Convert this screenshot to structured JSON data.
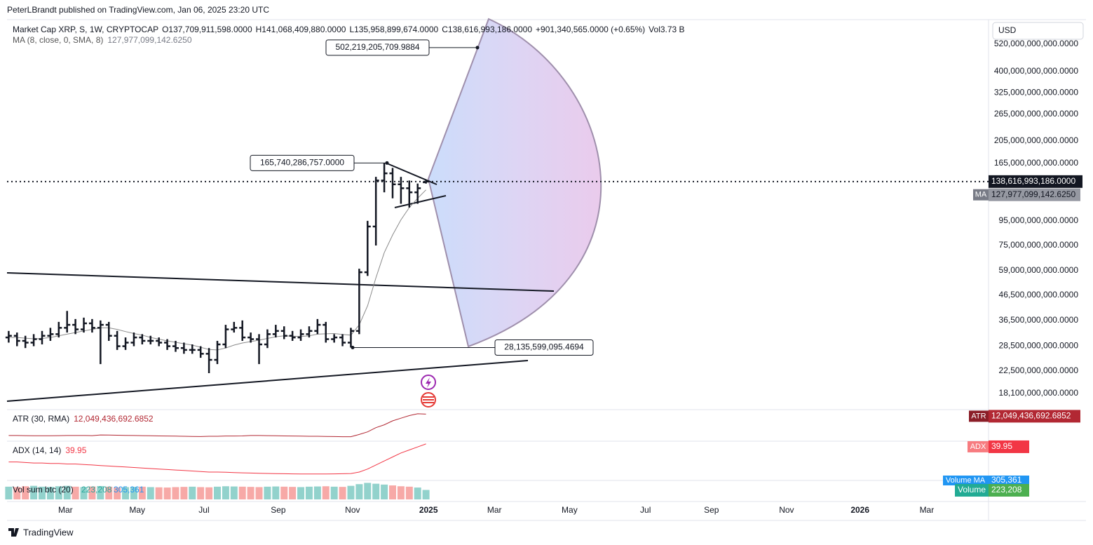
{
  "publisher": "PeterLBrandt published on TradingView.com, Jan 06, 2025 23:20 UTC",
  "currency": "USD",
  "footer": "TradingView",
  "chart_data": [
    {
      "type": "ohlc",
      "title": "Market Cap XRP, S, 1W, CRYPTOCAP",
      "legend": [
        "O137,709,911,598.0000",
        "H141,068,409,880.0000",
        "L135,958,899,674.0000",
        "C138,616,993,186.0000",
        "+901,340,565.0000 (+0.65%)",
        "Vol",
        "3.73 B"
      ],
      "color": "#131722",
      "log_scale": true,
      "x": [
        0,
        1,
        2,
        3,
        4,
        5,
        6,
        7,
        8,
        9,
        10,
        11,
        12,
        13,
        14,
        15,
        16,
        17,
        18,
        19,
        20,
        21,
        22,
        23,
        24,
        25,
        26,
        27,
        28,
        29,
        30,
        31,
        32,
        33,
        34,
        35,
        36,
        37,
        38,
        39,
        40,
        41,
        42,
        43,
        44,
        45,
        46,
        47,
        48,
        49,
        50
      ],
      "open": [
        31000000000.0,
        31500000000.0,
        30000000000.0,
        29500000000.0,
        30500000000.0,
        31500000000.0,
        32000000000.0,
        34000000000.0,
        35000000000.0,
        33500000000.0,
        35500000000.0,
        34000000000.0,
        35000000000.0,
        31500000000.0,
        28500000000.0,
        29500000000.0,
        31000000000.0,
        30000000000.0,
        30000000000.0,
        29500000000.0,
        28500000000.0,
        28000000000.0,
        27500000000.0,
        27500000000.0,
        26500000000.0,
        25000000000.0,
        29000000000.0,
        33500000000.0,
        34000000000.0,
        31000000000.0,
        30500000000.0,
        29000000000.0,
        32000000000.0,
        33000000000.0,
        31500000000.0,
        31000000000.0,
        32000000000.0,
        33000000000.0,
        35000000000.0,
        30500000000.0,
        31000000000.0,
        29500000000.0,
        33000000000.0,
        58000000000.0,
        90000000000.0,
        140000000000.0,
        150000000000.0,
        135000000000.0,
        130000000000.0,
        125000000000.0,
        137709911598
      ],
      "high": [
        33000000000.0,
        32500000000.0,
        31500000000.0,
        32000000000.0,
        33000000000.0,
        34000000000.0,
        36000000000.0,
        40000000000.0,
        37000000000.0,
        37500000000.0,
        37000000000.0,
        36500000000.0,
        36000000000.0,
        33000000000.0,
        31000000000.0,
        32500000000.0,
        32000000000.0,
        31500000000.0,
        31000000000.0,
        30500000000.0,
        30000000000.0,
        29500000000.0,
        29000000000.0,
        28500000000.0,
        28000000000.0,
        30000000000.0,
        35000000000.0,
        36000000000.0,
        36500000000.0,
        32500000000.0,
        32000000000.0,
        33500000000.0,
        35000000000.0,
        34500000000.0,
        33000000000.0,
        33500000000.0,
        34500000000.0,
        37000000000.0,
        36000000000.0,
        32000000000.0,
        32000000000.0,
        34000000000.0,
        60000000000.0,
        95000000000.0,
        145000000000.0,
        165740286757,
        158000000000.0,
        145000000000.0,
        140000000000.0,
        136000000000.0,
        141068409880
      ],
      "low": [
        29500000000.0,
        28500000000.0,
        28000000000.0,
        28500000000.0,
        29000000000.0,
        30000000000.0,
        31000000000.0,
        32500000000.0,
        32000000000.0,
        32500000000.0,
        32500000000.0,
        24000000000.0,
        30000000000.0,
        27500000000.0,
        27500000000.0,
        28500000000.0,
        29000000000.0,
        29000000000.0,
        28500000000.0,
        27500000000.0,
        27000000000.0,
        26500000000.0,
        26500000000.0,
        25500000000.0,
        22000000000.0,
        24000000000.0,
        28000000000.0,
        32500000000.0,
        30000000000.0,
        29500000000.0,
        24000000000.0,
        28000000000.0,
        31000000000.0,
        30500000000.0,
        30000000000.0,
        30000000000.0,
        31000000000.0,
        32000000000.0,
        29500000000.0,
        29500000000.0,
        28500000000.0,
        28135599095.4694,
        32000000000.0,
        56000000000.0,
        75000000000.0,
        125000000000.0,
        118000000000.0,
        112000000000.0,
        108000000000.0,
        112000000000.0,
        135958899674
      ],
      "close": [
        31500000000.0,
        30000000000.0,
        29500000000.0,
        30500000000.0,
        31500000000.0,
        32000000000.0,
        34000000000.0,
        35000000000.0,
        33500000000.0,
        35500000000.0,
        34000000000.0,
        35000000000.0,
        31500000000.0,
        28500000000.0,
        29500000000.0,
        31000000000.0,
        30000000000.0,
        30000000000.0,
        29500000000.0,
        28500000000.0,
        28000000000.0,
        27500000000.0,
        27500000000.0,
        26500000000.0,
        25000000000.0,
        29000000000.0,
        33500000000.0,
        34000000000.0,
        31000000000.0,
        30500000000.0,
        29000000000.0,
        32000000000.0,
        33000000000.0,
        31500000000.0,
        31000000000.0,
        32000000000.0,
        33000000000.0,
        35000000000.0,
        30500000000.0,
        31000000000.0,
        29500000000.0,
        33000000000.0,
        58000000000.0,
        90000000000.0,
        140000000000.0,
        150000000000.0,
        135000000000.0,
        130000000000.0,
        125000000000.0,
        130000000000.0,
        138616993186
      ],
      "close_label": "138,616,993,186.0000",
      "ma": {
        "name": "MA (8, close, 0, SMA, 8)",
        "short_name": "MA",
        "color": "#8a8a8a",
        "value_label": "127,977,099,142.6250",
        "values": [
          31000000000.0,
          31000000000.0,
          30800000000.0,
          30600000000.0,
          30700000000.0,
          31000000000.0,
          31500000000.0,
          32000000000.0,
          32500000000.0,
          33000000000.0,
          33500000000.0,
          34000000000.0,
          34000000000.0,
          33500000000.0,
          32800000000.0,
          32200000000.0,
          31700000000.0,
          31000000000.0,
          30500000000.0,
          30000000000.0,
          29600000000.0,
          29200000000.0,
          28800000000.0,
          28200000000.0,
          27600000000.0,
          27500000000.0,
          28000000000.0,
          28800000000.0,
          29400000000.0,
          29800000000.0,
          30200000000.0,
          30700000000.0,
          31200000000.0,
          31500000000.0,
          31400000000.0,
          31300000000.0,
          31500000000.0,
          32000000000.0,
          32100000000.0,
          32200000000.0,
          31900000000.0,
          31700000000.0,
          35000000000.0,
          42000000000.0,
          55000000000.0,
          70000000000.0,
          83000000000.0,
          96000000000.0,
          108000000000.0,
          118000000000.0,
          127977099142.625
        ]
      },
      "annotations": [
        {
          "value": 502219205709.9884,
          "label": "502,219,205,709.9884"
        },
        {
          "value": 165740286757,
          "label": "165,740,286,757.0000"
        },
        {
          "value": 28135599095.4694,
          "label": "28,135,599,095.4694"
        }
      ],
      "ylim": [
        15600000000.0,
        648000000000.0
      ],
      "yticks": [
        {
          "value": 520000000000.0,
          "label": "520,000,000,000.0000"
        },
        {
          "value": 400000000000.0,
          "label": "400,000,000,000.0000"
        },
        {
          "value": 325000000000.0,
          "label": "325,000,000,000.0000"
        },
        {
          "value": 265000000000.0,
          "label": "265,000,000,000.0000"
        },
        {
          "value": 205000000000.0,
          "label": "205,000,000,000.0000"
        },
        {
          "value": 165000000000.0,
          "label": "165,000,000,000.0000"
        },
        {
          "value": 95000000000.0,
          "label": "95,000,000,000.0000"
        },
        {
          "value": 75000000000.0,
          "label": "75,000,000,000.0000"
        },
        {
          "value": 59000000000.0,
          "label": "59,000,000,000.0000"
        },
        {
          "value": 46500000000.0,
          "label": "46,500,000,000.0000"
        },
        {
          "value": 36500000000.0,
          "label": "36,500,000,000.0000"
        },
        {
          "value": 28500000000.0,
          "label": "28,500,000,000.0000"
        },
        {
          "value": 22500000000.0,
          "label": "22,500,000,000.0000"
        },
        {
          "value": 18100000000.0,
          "label": "18,100,000,000.0000"
        }
      ],
      "xlim": [
        -0.2,
        117.4
      ],
      "xticks": [
        {
          "value": 6.8,
          "label": "Mar"
        },
        {
          "value": 15.4,
          "label": "May"
        },
        {
          "value": 23.4,
          "label": "Jul"
        },
        {
          "value": 32.3,
          "label": "Sep"
        },
        {
          "value": 41.2,
          "label": "Nov"
        },
        {
          "value": 50.3,
          "label": "2025"
        },
        {
          "value": 58.2,
          "label": "Mar"
        },
        {
          "value": 67.2,
          "label": "May"
        },
        {
          "value": 76.3,
          "label": "Jul"
        },
        {
          "value": 84.2,
          "label": "Sep"
        },
        {
          "value": 93.2,
          "label": "Nov"
        },
        {
          "value": 102,
          "label": "2026"
        },
        {
          "value": 110,
          "label": "Mar"
        }
      ]
    },
    {
      "type": "line",
      "title": "ATR (30, RMA)",
      "short_name": "ATR",
      "color": "#b22833",
      "value_label": "12,049,436,692.6852",
      "ylim": [
        2000000000.0,
        13500000000.0
      ],
      "values": [
        3900000000.0,
        3900000000.0,
        3850000000.0,
        3800000000.0,
        3800000000.0,
        3800000000.0,
        3850000000.0,
        3900000000.0,
        3900000000.0,
        3900000000.0,
        3850000000.0,
        4100000000.0,
        4050000000.0,
        4000000000.0,
        3950000000.0,
        3900000000.0,
        3850000000.0,
        3800000000.0,
        3750000000.0,
        3700000000.0,
        3650000000.0,
        3600000000.0,
        3550000000.0,
        3500000000.0,
        3600000000.0,
        3600000000.0,
        3700000000.0,
        3700000000.0,
        3750000000.0,
        3900000000.0,
        3900000000.0,
        3850000000.0,
        3800000000.0,
        3750000000.0,
        3700000000.0,
        3650000000.0,
        3600000000.0,
        3600000000.0,
        3550000000.0,
        3500000000.0,
        3450000000.0,
        3450000000.0,
        4300000000.0,
        5300000000.0,
        6900000000.0,
        8000000000.0,
        9500000000.0,
        10500000000.0,
        11500000000.0,
        12200000000.0,
        12049436692.6852
      ]
    },
    {
      "type": "line",
      "title": "ADX (14, 14)",
      "short_name": "ADX",
      "color": "#f23645",
      "ylim": [
        5,
        42
      ],
      "values": [
        22,
        22,
        21.5,
        21,
        21,
        20.5,
        20.5,
        20,
        20,
        19.5,
        19,
        18.5,
        18,
        17.5,
        17,
        16.5,
        16,
        15.5,
        15,
        14.5,
        14,
        13.5,
        13,
        12.5,
        12,
        12,
        11.8,
        11.5,
        11.2,
        11,
        10.8,
        10.6,
        10.4,
        10.3,
        10.2,
        10,
        10,
        10,
        10,
        10.2,
        10.3,
        10.5,
        12,
        15,
        19,
        23,
        27,
        31,
        34,
        37,
        39.95
      ]
    },
    {
      "type": "bar",
      "title": "Vol sum btc (20)",
      "short_name": "Volume",
      "value_label": "223,208",
      "ma_name": "Volume MA",
      "ma_label": "305,361",
      "ylim": [
        0,
        430000
      ],
      "colors": {
        "up": "#26a69a",
        "down": "#ef5350"
      },
      "values": [
        300000,
        290000,
        310000,
        320000,
        300000,
        295000,
        310000,
        320000,
        300000,
        290000,
        305000,
        315000,
        300000,
        285000,
        290000,
        295000,
        300000,
        290000,
        285000,
        280000,
        290000,
        295000,
        300000,
        290000,
        285000,
        300000,
        310000,
        305000,
        300000,
        295000,
        290000,
        300000,
        305000,
        300000,
        295000,
        290000,
        300000,
        305000,
        310000,
        300000,
        295000,
        320000,
        360000,
        390000,
        370000,
        350000,
        330000,
        310000,
        300000,
        280000,
        223208
      ]
    }
  ]
}
